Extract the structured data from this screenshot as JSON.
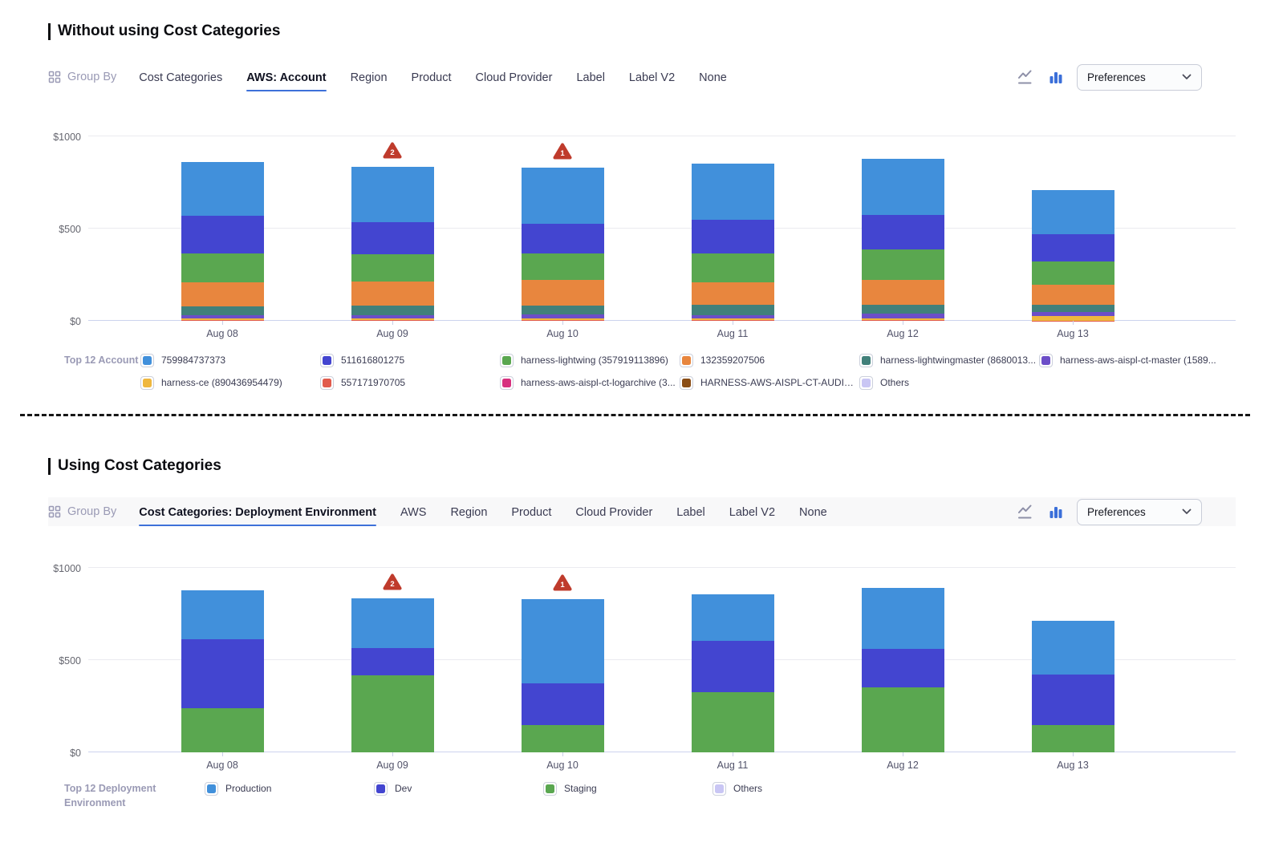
{
  "sections": [
    {
      "title": "Without using Cost Categories",
      "toolbar": {
        "group_by_label": "Group By",
        "tabs": [
          {
            "label": "Cost Categories",
            "active": false
          },
          {
            "label": "AWS: Account",
            "active": true
          },
          {
            "label": "Region",
            "active": false
          },
          {
            "label": "Product",
            "active": false
          },
          {
            "label": "Cloud Provider",
            "active": false
          },
          {
            "label": "Label",
            "active": false
          },
          {
            "label": "Label V2",
            "active": false
          },
          {
            "label": "None",
            "active": false
          }
        ],
        "chart_type_toggle": {
          "options": [
            "line",
            "bar"
          ],
          "active": "bar"
        },
        "preferences_label": "Preferences"
      },
      "legend_title": "Top 12 Account",
      "chart_data": {
        "type": "bar",
        "stacked": true,
        "grid": true,
        "legend_position": "bottom",
        "categories": [
          "Aug 08",
          "Aug 09",
          "Aug 10",
          "Aug 11",
          "Aug 12",
          "Aug 13"
        ],
        "ylim": [
          0,
          1000
        ],
        "yticks": [
          0,
          500,
          1000
        ],
        "ytick_labels": [
          "$0",
          "$500",
          "$1000"
        ],
        "series_order": "bottom-to-top",
        "series": [
          {
            "name": "557171970705",
            "color": "#e15b4d",
            "values": [
              4,
              4,
              4,
              4,
              4,
              2
            ]
          },
          {
            "name": "harness-ce (890436954479)",
            "color": "#efb73e",
            "values": [
              9,
              10,
              10,
              8,
              10,
              26
            ]
          },
          {
            "name": "harness-aws-aispl-ct-master (1589...",
            "color": "#6c4ec8",
            "values": [
              18,
              18,
              22,
              17,
              25,
              18
            ]
          },
          {
            "name": "harness-lightwingmaster (8680013...",
            "color": "#41807a",
            "values": [
              48,
              50,
              47,
              58,
              48,
              40
            ]
          },
          {
            "name": "132359207506",
            "color": "#e8863e",
            "values": [
              130,
              130,
              140,
              124,
              136,
              108
            ]
          },
          {
            "name": "harness-lightwing (357919113896)",
            "color": "#5aa750",
            "values": [
              156,
              150,
              144,
              157,
              166,
              130
            ]
          },
          {
            "name": "511616801275",
            "color": "#4345d0",
            "values": [
              203,
              172,
              160,
              181,
              187,
              144
            ]
          },
          {
            "name": "759984737373",
            "color": "#4190db",
            "values": [
              295,
              302,
              305,
              306,
              303,
              242
            ]
          }
        ],
        "anomalies": [
          {
            "category": "Aug 09",
            "count": 2
          },
          {
            "category": "Aug 10",
            "count": 1
          }
        ],
        "legend": [
          {
            "label": "759984737373",
            "color": "#4190db"
          },
          {
            "label": "511616801275",
            "color": "#4345d0"
          },
          {
            "label": "harness-lightwing (357919113896)",
            "color": "#5aa750"
          },
          {
            "label": "132359207506",
            "color": "#e8863e"
          },
          {
            "label": "harness-lightwingmaster (8680013...",
            "color": "#41807a"
          },
          {
            "label": "harness-aws-aispl-ct-master (1589...",
            "color": "#6c4ec8"
          },
          {
            "label": "harness-ce (890436954479)",
            "color": "#efb73e"
          },
          {
            "label": "557171970705",
            "color": "#e15b4d"
          },
          {
            "label": "harness-aws-aispl-ct-logarchive (3...",
            "color": "#d7317f"
          },
          {
            "label": "HARNESS-AWS-AISPL-CT-AUDIT (...",
            "color": "#8a4d15"
          },
          {
            "label": "Others",
            "color": "#c9c6f4"
          }
        ]
      }
    },
    {
      "title": "Using Cost Categories",
      "toolbar": {
        "group_by_label": "Group By",
        "tabs": [
          {
            "label": "Cost Categories: Deployment Environment",
            "active": true
          },
          {
            "label": "AWS",
            "active": false
          },
          {
            "label": "Region",
            "active": false
          },
          {
            "label": "Product",
            "active": false
          },
          {
            "label": "Cloud Provider",
            "active": false
          },
          {
            "label": "Label",
            "active": false
          },
          {
            "label": "Label V2",
            "active": false
          },
          {
            "label": "None",
            "active": false
          }
        ],
        "chart_type_toggle": {
          "options": [
            "line",
            "bar"
          ],
          "active": "bar"
        },
        "preferences_label": "Preferences"
      },
      "legend_title": "Top 12 Deployment Environment",
      "chart_data": {
        "type": "bar",
        "stacked": true,
        "grid": true,
        "legend_position": "bottom",
        "categories": [
          "Aug 08",
          "Aug 09",
          "Aug 10",
          "Aug 11",
          "Aug 12",
          "Aug 13"
        ],
        "ylim": [
          0,
          1000
        ],
        "yticks": [
          0,
          500,
          1000
        ],
        "ytick_labels": [
          "$0",
          "$500",
          "$1000"
        ],
        "series_order": "bottom-to-top",
        "series": [
          {
            "name": "Staging",
            "color": "#5aa750",
            "values": [
              240,
              419,
              147,
              325,
              352,
              147
            ]
          },
          {
            "name": "Dev",
            "color": "#4345d0",
            "values": [
              375,
              146,
              229,
              280,
              207,
              275
            ]
          },
          {
            "name": "Production",
            "color": "#4190db",
            "values": [
              262,
              269,
              454,
              251,
              332,
              291
            ]
          }
        ],
        "anomalies": [
          {
            "category": "Aug 09",
            "count": 2
          },
          {
            "category": "Aug 10",
            "count": 1
          }
        ],
        "legend": [
          {
            "label": "Production",
            "color": "#4190db"
          },
          {
            "label": "Dev",
            "color": "#4345d0"
          },
          {
            "label": "Staging",
            "color": "#5aa750"
          },
          {
            "label": "Others",
            "color": "#c9c6f4"
          }
        ]
      }
    }
  ],
  "anomaly_badge_color": "#bf3b2c",
  "accent_color": "#3d71d9"
}
